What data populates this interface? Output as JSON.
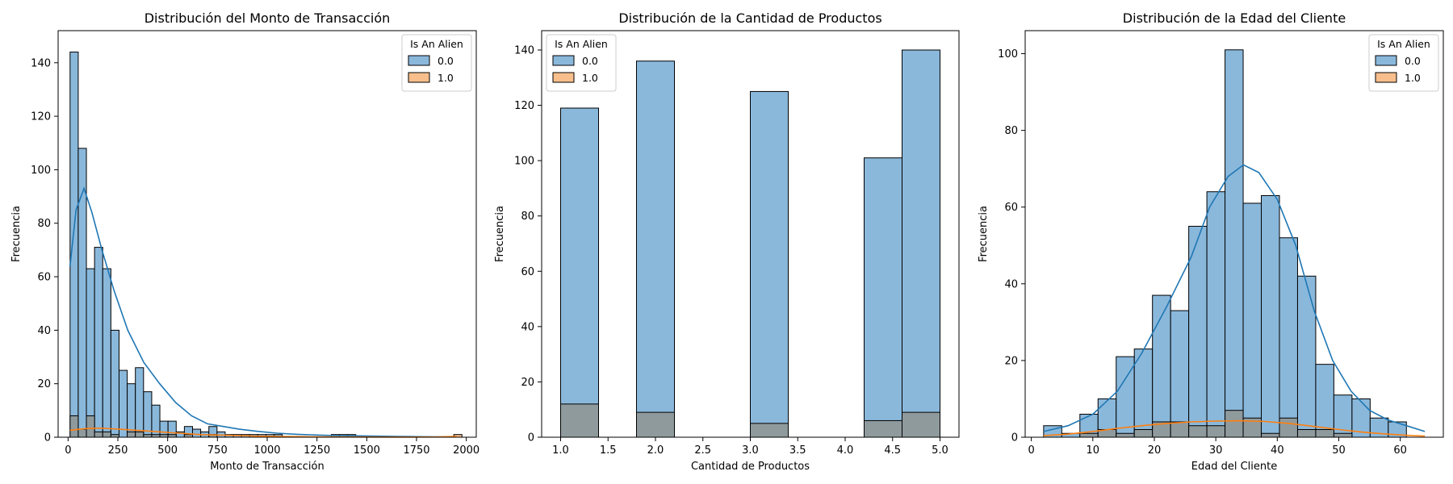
{
  "legend": {
    "title": "Is An Alien",
    "entries": [
      "0.0",
      "1.0"
    ],
    "colors": [
      "#8ab8db",
      "#f8be8c"
    ]
  },
  "colors": {
    "overlap": "#8f9a9d",
    "kde_blue": "#1f77b4",
    "kde_orange": "#ff7f0e",
    "edge": "#000000"
  },
  "chart_data": [
    {
      "type": "bar",
      "title": "Distribución del Monto de Transacción",
      "xlabel": "Monto de Transacción",
      "ylabel": "Frecuencia",
      "xlim": [
        -50,
        2050
      ],
      "ylim": [
        0,
        152
      ],
      "xticks": [
        0,
        250,
        500,
        750,
        1000,
        1250,
        1500,
        1750,
        2000
      ],
      "yticks": [
        0,
        20,
        40,
        60,
        80,
        100,
        120,
        140
      ],
      "legend_position": "top-right",
      "bin_edges": [
        10,
        51,
        92,
        133,
        174,
        215,
        256,
        297,
        338,
        379,
        420,
        461,
        502,
        543,
        584,
        625,
        666,
        707,
        748,
        789,
        830,
        871,
        912,
        953,
        994,
        1035,
        1076,
        1117,
        1158,
        1199,
        1240,
        1281,
        1322,
        1363,
        1404,
        1445,
        1486,
        1527,
        1568,
        1609,
        1650,
        1691,
        1732,
        1773,
        1814,
        1855,
        1896,
        1937,
        1978
      ],
      "series": [
        {
          "name": "0.0",
          "values": [
            144,
            108,
            63,
            71,
            63,
            40,
            25,
            20,
            26,
            17,
            12,
            6,
            6,
            2,
            4,
            3,
            2,
            4,
            2,
            1,
            1,
            1,
            1,
            1,
            1,
            1,
            0,
            0,
            0,
            0,
            0,
            0,
            1,
            1,
            1,
            0,
            0,
            0,
            0,
            0,
            0,
            0,
            0,
            0,
            0,
            0,
            0,
            0
          ],
          "kde": [
            [
              10,
              64
            ],
            [
              40,
              85
            ],
            [
              80,
              93
            ],
            [
              120,
              84
            ],
            [
              170,
              70
            ],
            [
              230,
              55
            ],
            [
              300,
              40
            ],
            [
              380,
              28
            ],
            [
              460,
              20
            ],
            [
              540,
              13
            ],
            [
              620,
              8
            ],
            [
              700,
              5
            ],
            [
              780,
              4
            ],
            [
              860,
              3
            ],
            [
              950,
              2.2
            ],
            [
              1050,
              1.5
            ],
            [
              1150,
              1.1
            ],
            [
              1250,
              0.8
            ],
            [
              1350,
              0.6
            ],
            [
              1450,
              0.5
            ],
            [
              1550,
              0.4
            ],
            [
              1650,
              0.3
            ],
            [
              1750,
              0.2
            ],
            [
              1850,
              0.15
            ],
            [
              1950,
              0.1
            ]
          ]
        },
        {
          "name": "1.0",
          "values": [
            8,
            3,
            8,
            2,
            2,
            1,
            0,
            2,
            2,
            1,
            1,
            1,
            1,
            0,
            1,
            0,
            0,
            1,
            0,
            0,
            0,
            0,
            0,
            0,
            0,
            0,
            0,
            0,
            0,
            0,
            0,
            0,
            0,
            0,
            0,
            0,
            0,
            0,
            0,
            0,
            0,
            0,
            0,
            0,
            0,
            0,
            0,
            1
          ],
          "kde": [
            [
              10,
              2.6
            ],
            [
              80,
              3.2
            ],
            [
              160,
              3.4
            ],
            [
              260,
              3.0
            ],
            [
              360,
              2.5
            ],
            [
              460,
              2.0
            ],
            [
              560,
              1.5
            ],
            [
              660,
              1.0
            ],
            [
              760,
              0.8
            ],
            [
              860,
              0.6
            ],
            [
              960,
              0.4
            ],
            [
              1060,
              0.3
            ],
            [
              1160,
              0.2
            ],
            [
              1260,
              0.15
            ],
            [
              1400,
              0.1
            ],
            [
              1550,
              0.05
            ],
            [
              1700,
              0.05
            ],
            [
              1850,
              0.1
            ],
            [
              1950,
              0.3
            ]
          ]
        }
      ]
    },
    {
      "type": "bar",
      "title": "Distribución de la Cantidad de Productos",
      "xlabel": "Cantidad de Productos",
      "ylabel": "Frecuencia",
      "xlim": [
        0.8,
        5.2
      ],
      "ylim": [
        0,
        147
      ],
      "xticks": [
        "1.0",
        "1.5",
        "2.0",
        "2.5",
        "3.0",
        "3.5",
        "4.0",
        "4.5",
        "5.0"
      ],
      "yticks": [
        0,
        20,
        40,
        60,
        80,
        100,
        120,
        140
      ],
      "legend_position": "top-left",
      "bin_edges": [
        1.0,
        1.4,
        1.8,
        2.2,
        2.6,
        3.0,
        3.4,
        3.8,
        4.2,
        4.6,
        5.0
      ],
      "series": [
        {
          "name": "0.0",
          "values": [
            119,
            0,
            136,
            0,
            0,
            125,
            0,
            0,
            101,
            140
          ]
        },
        {
          "name": "1.0",
          "values": [
            12,
            0,
            9,
            0,
            0,
            5,
            0,
            0,
            6,
            9
          ]
        }
      ]
    },
    {
      "type": "bar",
      "title": "Distribución de la Edad del Cliente",
      "xlabel": "Edad del Cliente",
      "ylabel": "Frecuencia",
      "xlim": [
        -1,
        67
      ],
      "ylim": [
        0,
        106
      ],
      "xticks": [
        0,
        10,
        20,
        30,
        40,
        50,
        60
      ],
      "yticks": [
        0,
        20,
        40,
        60,
        80,
        100
      ],
      "legend_position": "top-right",
      "bin_edges": [
        2,
        4.95,
        7.9,
        10.85,
        13.8,
        16.75,
        19.7,
        22.65,
        25.6,
        28.55,
        31.5,
        34.45,
        37.4,
        40.35,
        43.3,
        46.25,
        49.2,
        52.15,
        55.1,
        58.05,
        61,
        63.95
      ],
      "series": [
        {
          "name": "0.0",
          "values": [
            3,
            1,
            6,
            10,
            21,
            23,
            37,
            33,
            55,
            64,
            101,
            61,
            63,
            52,
            42,
            19,
            11,
            10,
            5,
            4,
            0
          ]
        },
        {
          "name": "1.0",
          "values": [
            0,
            0,
            1,
            2,
            1,
            2,
            4,
            4,
            3,
            3,
            7,
            5,
            1,
            5,
            2,
            2,
            1,
            0,
            0,
            0,
            0
          ]
        }
      ],
      "kde": [
        [
          [
            2,
            1.5
          ],
          [
            6,
            3
          ],
          [
            10,
            6
          ],
          [
            14,
            12
          ],
          [
            18,
            22
          ],
          [
            22,
            34
          ],
          [
            26,
            47
          ],
          [
            29,
            60
          ],
          [
            32,
            68
          ],
          [
            34.5,
            71
          ],
          [
            37,
            69
          ],
          [
            40,
            62
          ],
          [
            43,
            50
          ],
          [
            46,
            33
          ],
          [
            49,
            20
          ],
          [
            52,
            12
          ],
          [
            55,
            7
          ],
          [
            58,
            4.5
          ],
          [
            61,
            3
          ],
          [
            64,
            1.5
          ]
        ],
        [
          [
            2,
            0.4
          ],
          [
            6,
            0.8
          ],
          [
            10,
            1.5
          ],
          [
            14,
            2.3
          ],
          [
            18,
            3.0
          ],
          [
            22,
            3.6
          ],
          [
            26,
            4.0
          ],
          [
            30,
            4.2
          ],
          [
            34,
            4.3
          ],
          [
            38,
            4.1
          ],
          [
            42,
            3.6
          ],
          [
            46,
            2.8
          ],
          [
            50,
            2.0
          ],
          [
            54,
            1.3
          ],
          [
            58,
            0.8
          ],
          [
            62,
            0.4
          ],
          [
            64,
            0.3
          ]
        ]
      ]
    }
  ]
}
